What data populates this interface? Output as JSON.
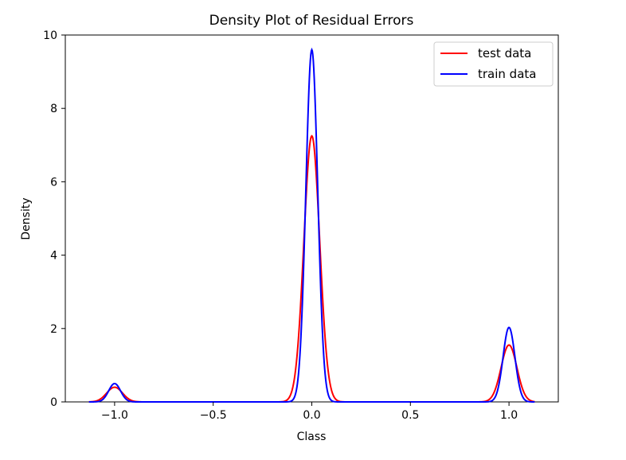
{
  "chart_data": {
    "type": "line",
    "title": "Density Plot of Residual Errors",
    "xlabel": "Class",
    "ylabel": "Density",
    "xlim": [
      -1.25,
      1.25
    ],
    "ylim": [
      0,
      10
    ],
    "xticks": [
      -1.0,
      -0.5,
      0.0,
      0.5,
      1.0
    ],
    "xtick_labels": [
      "−1.0",
      "−0.5",
      "0.0",
      "0.5",
      "1.0"
    ],
    "yticks": [
      0,
      2,
      4,
      6,
      8,
      10
    ],
    "ytick_labels": [
      "0",
      "2",
      "4",
      "6",
      "8",
      "10"
    ],
    "grid": false,
    "legend_position": "top-right",
    "series": [
      {
        "name": "test data",
        "color": "#ff0000",
        "x_range": [
          -1.13,
          1.13
        ],
        "peaks": [
          {
            "center": -1.0,
            "height": 0.4,
            "sigma": 0.04
          },
          {
            "center": 0.0,
            "height": 7.25,
            "sigma": 0.04
          },
          {
            "center": 1.0,
            "height": 1.55,
            "sigma": 0.04
          }
        ]
      },
      {
        "name": "train data",
        "color": "#0000ff",
        "x_range": [
          -1.13,
          1.13
        ],
        "peaks": [
          {
            "center": -1.0,
            "height": 0.5,
            "sigma": 0.03
          },
          {
            "center": 0.0,
            "height": 9.6,
            "sigma": 0.03
          },
          {
            "center": 1.0,
            "height": 2.03,
            "sigma": 0.03
          }
        ]
      }
    ]
  }
}
